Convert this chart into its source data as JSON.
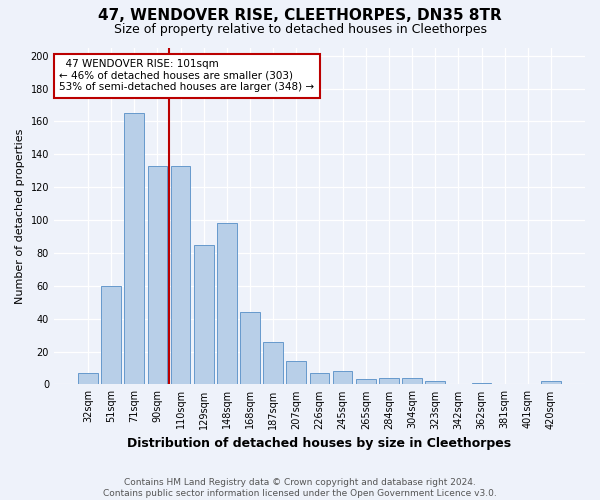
{
  "title": "47, WENDOVER RISE, CLEETHORPES, DN35 8TR",
  "subtitle": "Size of property relative to detached houses in Cleethorpes",
  "xlabel": "Distribution of detached houses by size in Cleethorpes",
  "ylabel": "Number of detached properties",
  "categories": [
    "32sqm",
    "51sqm",
    "71sqm",
    "90sqm",
    "110sqm",
    "129sqm",
    "148sqm",
    "168sqm",
    "187sqm",
    "207sqm",
    "226sqm",
    "245sqm",
    "265sqm",
    "284sqm",
    "304sqm",
    "323sqm",
    "342sqm",
    "362sqm",
    "381sqm",
    "401sqm",
    "420sqm"
  ],
  "values": [
    7,
    60,
    165,
    133,
    133,
    85,
    98,
    44,
    26,
    14,
    7,
    8,
    3,
    4,
    4,
    2,
    0,
    1,
    0,
    0,
    2
  ],
  "bar_color": "#b8cfe8",
  "bar_edge_color": "#6699cc",
  "property_label": "47 WENDOVER RISE: 101sqm",
  "pct_smaller": 46,
  "n_smaller": 303,
  "pct_larger_semi": 53,
  "n_larger_semi": 348,
  "vline_x_index": 3.5,
  "ylim": [
    0,
    205
  ],
  "yticks": [
    0,
    20,
    40,
    60,
    80,
    100,
    120,
    140,
    160,
    180,
    200
  ],
  "background_color": "#eef2fa",
  "plot_bg_color": "#eef2fa",
  "vline_color": "#bb0000",
  "title_fontsize": 11,
  "subtitle_fontsize": 9,
  "xlabel_fontsize": 9,
  "ylabel_fontsize": 8,
  "tick_fontsize": 7,
  "ann_fontsize": 7.5,
  "footer": "Contains HM Land Registry data © Crown copyright and database right 2024.\nContains public sector information licensed under the Open Government Licence v3.0."
}
